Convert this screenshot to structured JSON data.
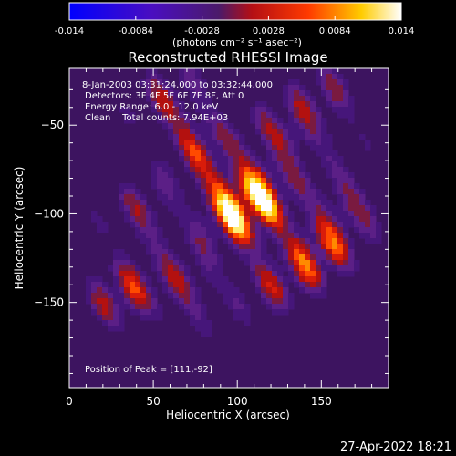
{
  "colorbar": {
    "ticks": [
      "-0.014",
      "-0.0084",
      "-0.0028",
      "0.0028",
      "0.0084",
      "0.014"
    ],
    "units": "(photons cm⁻² s⁻¹ asec⁻²)"
  },
  "plot": {
    "title": "Reconstructed RHESSI Image",
    "info_lines": [
      "8-Jan-2003 03:31:24.000 to 03:32:44.000",
      "Detectors: 3F 4F 5F 6F 7F 8F, Att 0",
      "Energy Range: 6.0 - 12.0 keV",
      "Clean    Total counts: 7.94E+03"
    ],
    "peak_label": "Position of Peak = [111,-92]",
    "timestamp": "27-Apr-2022 18:21"
  },
  "chart_data": {
    "type": "heatmap",
    "title": "Reconstructed RHESSI Image",
    "xlabel": "Heliocentric X (arcsec)",
    "ylabel": "Heliocentric Y (arcsec)",
    "xlim": [
      0,
      190
    ],
    "ylim": [
      -198,
      -18
    ],
    "x_ticks": [
      {
        "value": 0,
        "label": "0"
      },
      {
        "value": 50,
        "label": "50"
      },
      {
        "value": 100,
        "label": "100"
      },
      {
        "value": 150,
        "label": "150"
      }
    ],
    "y_ticks": [
      {
        "value": -50,
        "label": "−50"
      },
      {
        "value": -100,
        "label": "−100"
      },
      {
        "value": -150,
        "label": "−150"
      }
    ],
    "colorbar_range": [
      -0.014,
      0.014
    ],
    "colormap": [
      "#0000ff",
      "#3c0a7a",
      "#5a1c8c",
      "#cc1010",
      "#ff6a00",
      "#ffdd00",
      "#ffffff"
    ],
    "peak_position": [
      111,
      -92
    ],
    "blobs": [
      {
        "x": 111,
        "y": -92,
        "intensity": 1.0
      },
      {
        "x": 97,
        "y": -97,
        "intensity": 0.85
      },
      {
        "x": 148,
        "y": -122,
        "intensity": 0.8
      },
      {
        "x": 32,
        "y": -145,
        "intensity": 0.65
      },
      {
        "x": 78,
        "y": -62,
        "intensity": 0.6
      },
      {
        "x": 130,
        "y": -55,
        "intensity": 0.55
      },
      {
        "x": 70,
        "y": -140,
        "intensity": 0.5
      },
      {
        "x": 165,
        "y": -95,
        "intensity": 0.5
      },
      {
        "x": 45,
        "y": -100,
        "intensity": 0.45
      },
      {
        "x": 120,
        "y": -140,
        "intensity": 0.45
      },
      {
        "x": 60,
        "y": -35,
        "intensity": 0.45
      },
      {
        "x": 155,
        "y": -35,
        "intensity": 0.4
      }
    ]
  }
}
